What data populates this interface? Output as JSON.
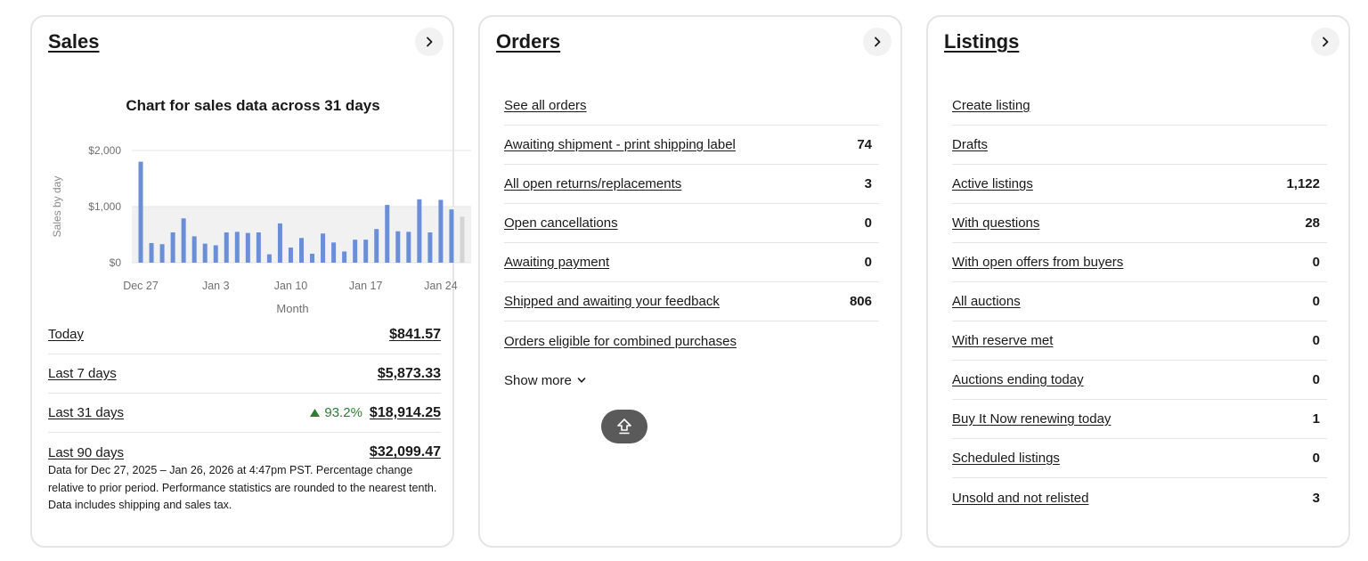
{
  "sales": {
    "title": "Sales",
    "rows": [
      {
        "label": "Today",
        "amount": "$841.57"
      },
      {
        "label": "Last 7 days",
        "amount": "$5,873.33"
      },
      {
        "label": "Last 31 days",
        "change": "93.2%",
        "amount": "$18,914.25"
      },
      {
        "label": "Last 90 days",
        "amount": "$32,099.47"
      }
    ],
    "disclaimer": "Data for Dec 27, 2025 – Jan 26, 2026 at 4:47pm PST. Percentage change relative to prior period. Performance statistics are rounded to the nearest tenth. Data includes shipping and sales tax."
  },
  "chart_data": {
    "type": "bar",
    "title": "Chart for sales data across 31 days",
    "xlabel": "Month",
    "ylabel": "Sales by day",
    "x_tick_labels": [
      "Dec 27",
      "Jan 3",
      "Jan 10",
      "Jan 17",
      "Jan 24"
    ],
    "y_tick_labels": [
      "$2,000",
      "$1,000",
      "$0"
    ],
    "ylim": [
      0,
      2000
    ],
    "categories": [
      "Dec 27",
      "Dec 28",
      "Dec 29",
      "Dec 30",
      "Dec 31",
      "Jan 1",
      "Jan 2",
      "Jan 3",
      "Jan 4",
      "Jan 5",
      "Jan 6",
      "Jan 7",
      "Jan 8",
      "Jan 9",
      "Jan 10",
      "Jan 11",
      "Jan 12",
      "Jan 13",
      "Jan 14",
      "Jan 15",
      "Jan 16",
      "Jan 17",
      "Jan 18",
      "Jan 19",
      "Jan 20",
      "Jan 21",
      "Jan 22",
      "Jan 23",
      "Jan 24",
      "Jan 25",
      "Jan 26"
    ],
    "values": [
      1800,
      350,
      330,
      540,
      790,
      470,
      340,
      310,
      540,
      550,
      530,
      540,
      150,
      700,
      270,
      440,
      160,
      520,
      360,
      200,
      410,
      410,
      600,
      1030,
      560,
      550,
      1130,
      540,
      1120,
      950,
      820
    ],
    "highlight_last": true,
    "colors": {
      "bar": "#6b8fd6",
      "last_bar": "#d4d4d4",
      "band": "#f1f1f1",
      "grid": "#e5e5e5"
    }
  },
  "orders": {
    "title": "Orders",
    "rows": [
      {
        "label": "See all orders",
        "count": ""
      },
      {
        "label": "Awaiting shipment - print shipping label",
        "count": "74"
      },
      {
        "label": "All open returns/replacements",
        "count": "3"
      },
      {
        "label": "Open cancellations",
        "count": "0"
      },
      {
        "label": "Awaiting payment",
        "count": "0"
      },
      {
        "label": "Shipped and awaiting your feedback",
        "count": "806"
      },
      {
        "label": "Orders eligible for combined purchases",
        "count": ""
      }
    ],
    "show_more": "Show more"
  },
  "listings": {
    "title": "Listings",
    "rows": [
      {
        "label": "Create listing",
        "count": ""
      },
      {
        "label": "Drafts",
        "count": ""
      },
      {
        "label": "Active listings",
        "count": "1,122"
      },
      {
        "label": "With questions",
        "count": "28"
      },
      {
        "label": "With open offers from buyers",
        "count": "0"
      },
      {
        "label": "All auctions",
        "count": "0"
      },
      {
        "label": "With reserve met",
        "count": "0"
      },
      {
        "label": "Auctions ending today",
        "count": "0"
      },
      {
        "label": "Buy It Now renewing today",
        "count": "1"
      },
      {
        "label": "Scheduled listings",
        "count": "0"
      },
      {
        "label": "Unsold and not relisted",
        "count": "3"
      }
    ]
  },
  "icons": {
    "card_arrow": "chevron-right-icon",
    "show_more": "chevron-down-icon",
    "trend": "arrow-up-icon",
    "floating": "scroll-to-top-icon"
  }
}
